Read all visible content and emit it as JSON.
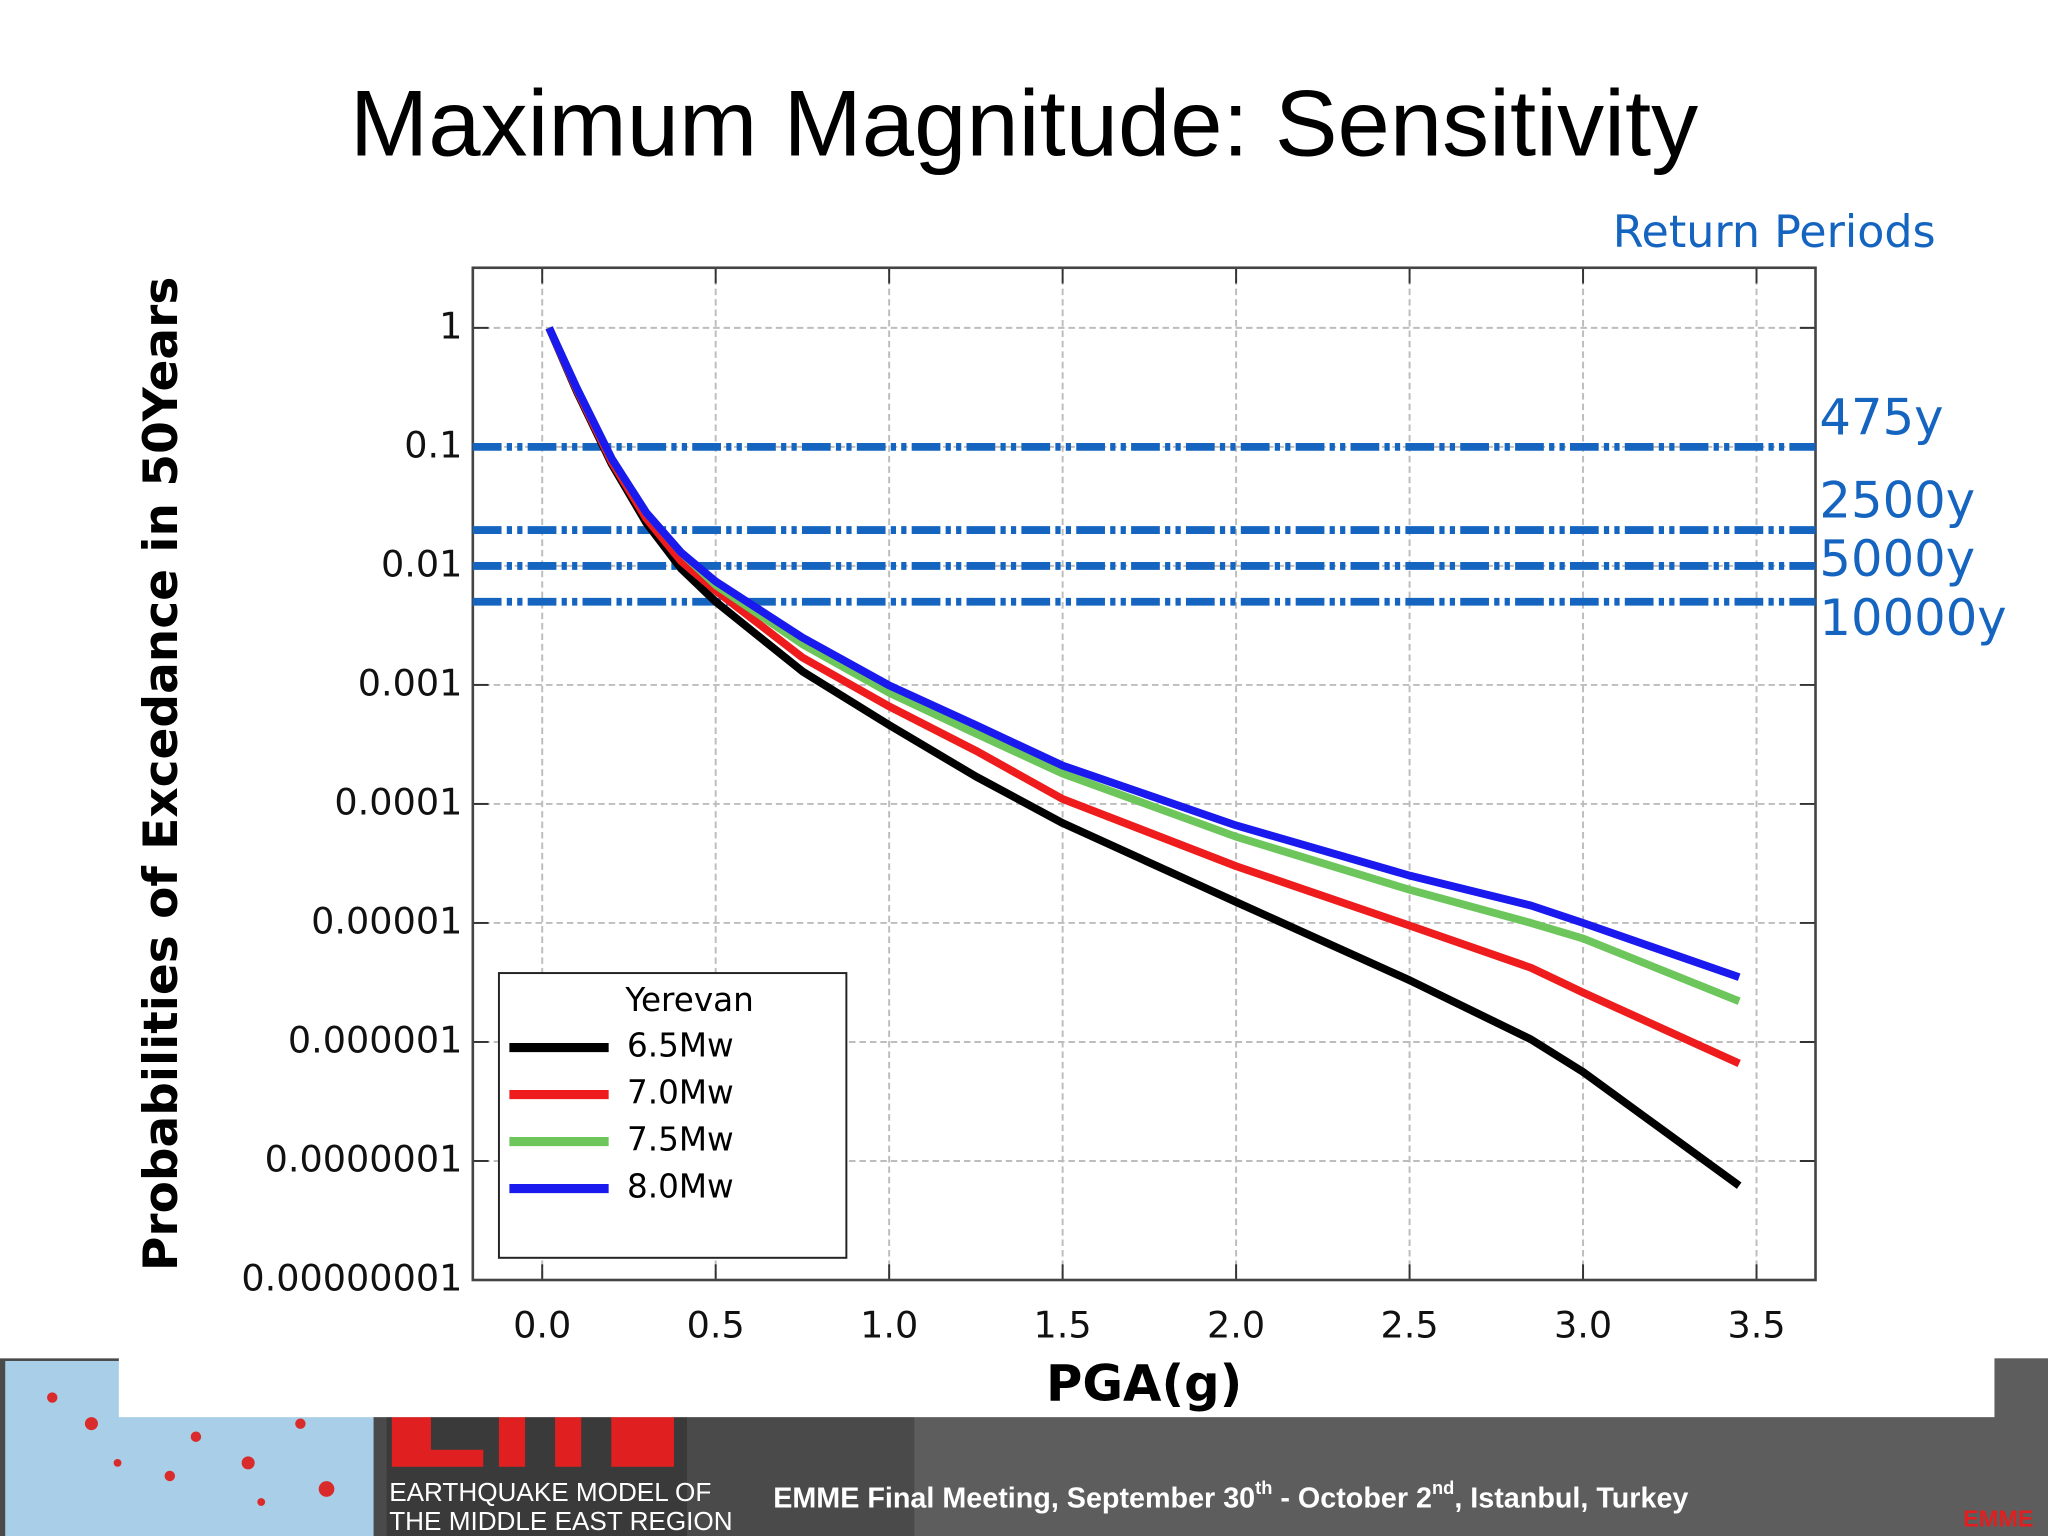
{
  "slide": {
    "title": "Maximum Magnitude: Sensitivity",
    "footer": {
      "org": [
        "EARTHQUAKE MODEL OF",
        "THE MIDDLE EAST REGION"
      ],
      "meeting": [
        "EMME Final Meeting, September 30",
        "th",
        " - October 2",
        "nd",
        ", Istanbul, Turkey"
      ],
      "logo": "EMME"
    }
  },
  "chart_data": {
    "type": "line",
    "y_label": "Probabilities of Excedance in 50Years",
    "x_label": "PGA(g)",
    "annotation": "Return Periods",
    "legend_title": "Yerevan",
    "legend": "lower left",
    "ylog": true,
    "grid": true,
    "x": [
      0.02,
      0.1,
      0.2,
      0.3,
      0.4,
      0.5,
      0.75,
      1.0,
      1.25,
      1.5,
      2.0,
      2.5,
      2.85,
      3.0,
      3.45
    ],
    "series": [
      {
        "name": "6.5Mw",
        "color": "#000000",
        "values": [
          1,
          0.29,
          0.072,
          0.023,
          0.0095,
          0.005,
          0.0013,
          0.00046,
          0.00017,
          6.9e-05,
          1.5e-05,
          3.3e-06,
          1.05e-06,
          5.6e-07,
          6.2e-08
        ]
      },
      {
        "name": "7.0Mw",
        "color": "#ee1c1c",
        "values": [
          1,
          0.3,
          0.075,
          0.025,
          0.011,
          0.0062,
          0.0017,
          0.00066,
          0.00028,
          0.00011,
          3e-05,
          9.5e-06,
          4.2e-06,
          2.6e-06,
          6.6e-07
        ]
      },
      {
        "name": "7.5Mw",
        "color": "#6cc65c",
        "values": [
          1,
          0.31,
          0.08,
          0.028,
          0.013,
          0.0069,
          0.0022,
          0.00086,
          0.00039,
          0.00018,
          5.3e-05,
          1.9e-05,
          1e-05,
          7.4e-06,
          2.2e-06
        ]
      },
      {
        "name": "8.0Mw",
        "color": "#1a1aee",
        "values": [
          1,
          0.31,
          0.08,
          0.028,
          0.013,
          0.0074,
          0.0025,
          0.00099,
          0.00046,
          0.00021,
          6.6e-05,
          2.5e-05,
          1.4e-05,
          1e-05,
          3.5e-06
        ]
      }
    ],
    "reference_lines": [
      {
        "value": 0.1,
        "label": "475y"
      },
      {
        "value": 0.02,
        "label": "2500y"
      },
      {
        "value": 0.01,
        "label": "5000y"
      },
      {
        "value": 0.005,
        "label": "10000y"
      }
    ],
    "reference_color": "#1565c0",
    "xlim": [
      -0.2,
      3.67
    ],
    "ylim": [
      1e-08,
      3.2
    ],
    "xticks": [
      {
        "value": 0,
        "label": "0.0"
      },
      {
        "value": 0.5,
        "label": "0.5"
      },
      {
        "value": 1,
        "label": "1.0"
      },
      {
        "value": 1.5,
        "label": "1.5"
      },
      {
        "value": 2,
        "label": "2.0"
      },
      {
        "value": 2.5,
        "label": "2.5"
      },
      {
        "value": 3,
        "label": "3.0"
      },
      {
        "value": 3.5,
        "label": "3.5"
      }
    ],
    "yticks": [
      1,
      0.1,
      0.01,
      0.001,
      0.0001,
      1e-05,
      1e-06,
      {
        "value": 1e-07,
        "label": "0.0000001"
      },
      {
        "value": 1e-08,
        "label": "0.00000001"
      }
    ]
  }
}
